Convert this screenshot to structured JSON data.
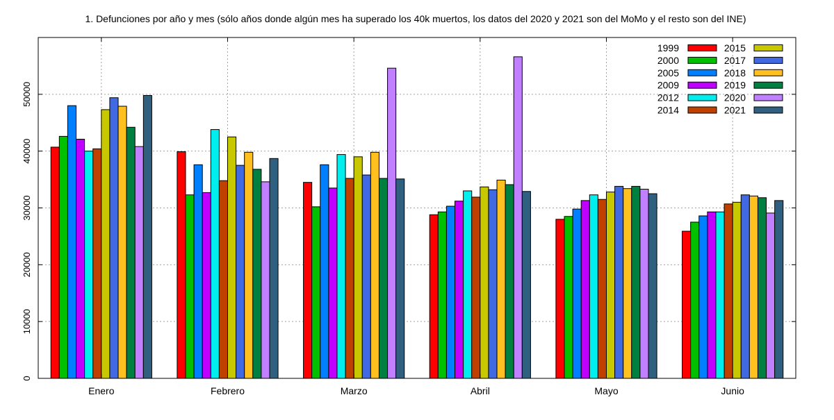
{
  "chart_data": {
    "type": "bar",
    "title": "1. Defunciones por año y mes (sólo años donde algún mes ha superado los 40k muertos, los datos del 2020 y 2021 son del MoMo y el resto son del INE)",
    "xlabel": "",
    "ylabel": "",
    "ylim": [
      0,
      60000
    ],
    "yticks": [
      0,
      10000,
      20000,
      30000,
      40000,
      50000
    ],
    "grid": true,
    "legend_position": "top-right",
    "categories": [
      "Enero",
      "Febrero",
      "Marzo",
      "Abril",
      "Mayo",
      "Junio"
    ],
    "series": [
      {
        "name": "1999",
        "color": "#ff0000",
        "values": [
          40700,
          39900,
          34500,
          28800,
          28000,
          25900
        ]
      },
      {
        "name": "2000",
        "color": "#00c000",
        "values": [
          42600,
          32300,
          30200,
          29300,
          28500,
          27500
        ]
      },
      {
        "name": "2005",
        "color": "#0080ff",
        "values": [
          48000,
          37600,
          37600,
          30300,
          29800,
          28600
        ]
      },
      {
        "name": "2009",
        "color": "#c000ff",
        "values": [
          42100,
          32700,
          33500,
          31200,
          31300,
          29300
        ]
      },
      {
        "name": "2012",
        "color": "#00eeee",
        "values": [
          40000,
          43800,
          39400,
          33000,
          32300,
          29300
        ]
      },
      {
        "name": "2014",
        "color": "#c04000",
        "values": [
          40400,
          34800,
          35200,
          31900,
          31500,
          30700
        ]
      },
      {
        "name": "2015",
        "color": "#c8c800",
        "values": [
          47300,
          42500,
          39000,
          33700,
          32800,
          31000
        ]
      },
      {
        "name": "2017",
        "color": "#4169e1",
        "values": [
          49400,
          37500,
          35800,
          33200,
          33800,
          32300
        ]
      },
      {
        "name": "2018",
        "color": "#ffc020",
        "values": [
          47900,
          39800,
          39800,
          34900,
          33400,
          32100
        ]
      },
      {
        "name": "2019",
        "color": "#008040",
        "values": [
          44200,
          36800,
          35200,
          34100,
          33800,
          31800
        ]
      },
      {
        "name": "2020",
        "color": "#c080ff",
        "values": [
          40800,
          34600,
          54600,
          56600,
          33300,
          29100
        ]
      },
      {
        "name": "2021",
        "color": "#306080",
        "values": [
          49800,
          38700,
          35100,
          32900,
          32500,
          31300
        ]
      }
    ]
  }
}
